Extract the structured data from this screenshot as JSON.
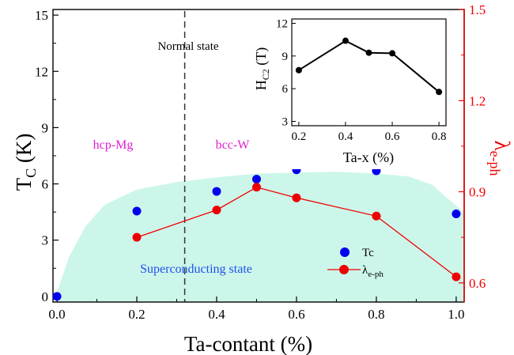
{
  "chart_data": [
    {
      "type": "scatter",
      "xlabel": "Ta-contant (%)",
      "ylabel_left": {
        "main": "T",
        "sub": "C",
        "unit": " (K)"
      },
      "ylabel_right": {
        "main": "λ",
        "sub": "e-ph"
      },
      "xlim": [
        -0.01,
        1.02
      ],
      "ylim_left": [
        -0.3,
        15.3
      ],
      "ylim_right": [
        0.537,
        1.5
      ],
      "x_ticks": [
        "0.0",
        "0.2",
        "0.4",
        "0.6",
        "0.8",
        "1.0"
      ],
      "y_ticks_left": [
        "0",
        "3",
        "6",
        "9",
        "12",
        "15"
      ],
      "y_ticks_right": [
        "0.6",
        "0.9",
        "1.2",
        "1.5"
      ],
      "annotations": {
        "normal_state": "Normal state",
        "hcp": "hcp-Mg",
        "bcc": "bcc-W",
        "superconducting": "Superconducting state"
      },
      "phase_boundary_x": 0.32,
      "series": [
        {
          "name": "Tc",
          "axis": "left",
          "color": "#0000ee",
          "x": [
            0.0,
            0.2,
            0.4,
            0.5,
            0.6,
            0.8,
            1.0
          ],
          "values": [
            0.0,
            4.55,
            5.6,
            6.25,
            6.75,
            6.7,
            4.4
          ]
        },
        {
          "name": "λe-ph",
          "label_main": "λ",
          "label_sub": "e-ph",
          "axis": "right",
          "color": "#ee0000",
          "x": [
            0.2,
            0.4,
            0.5,
            0.6,
            0.8,
            1.0
          ],
          "values": [
            0.75,
            0.84,
            0.915,
            0.88,
            0.82,
            0.62
          ]
        }
      ],
      "legend": {
        "placement": "bottom-right"
      },
      "fill_color": "#cdf6ea"
    },
    {
      "type": "line",
      "inset": true,
      "xlabel": "Ta-x (%)",
      "ylabel": {
        "main": "H",
        "sub": "C2",
        "unit": " (T)"
      },
      "xlim": [
        0.17,
        0.83
      ],
      "ylim": [
        2.6,
        12.4
      ],
      "x_ticks": [
        "0.2",
        "0.4",
        "0.6",
        "0.8"
      ],
      "y_ticks": [
        "3",
        "6",
        "9",
        "12"
      ],
      "series": [
        {
          "x": [
            0.2,
            0.4,
            0.5,
            0.6,
            0.8
          ],
          "values": [
            7.7,
            10.4,
            9.3,
            9.25,
            5.7
          ],
          "color": "#000000"
        }
      ]
    }
  ]
}
